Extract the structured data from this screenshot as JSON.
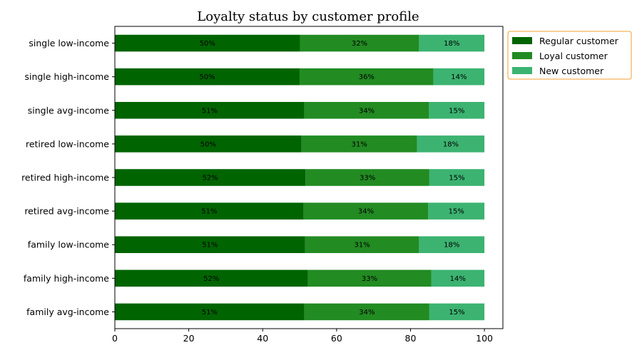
{
  "chart_data": {
    "type": "bar",
    "orientation": "horizontal",
    "stacked": true,
    "title": "Loyalty status by customer profile",
    "xlabel": "",
    "ylabel": "",
    "xlim": [
      0,
      105
    ],
    "x_ticks": [
      "0",
      "20",
      "40",
      "60",
      "80",
      "100"
    ],
    "grid": false,
    "legend_position": "outside-top-right",
    "categories": [
      "single low-income",
      "single high-income",
      "single avg-income",
      "retired low-income",
      "retired high-income",
      "retired avg-income",
      "family low-income",
      "family high-income",
      "family avg-income"
    ],
    "series": [
      {
        "name": "Regular customer",
        "color": "#006400",
        "values": [
          50.1,
          50.0,
          51.3,
          50.5,
          51.6,
          51.1,
          51.5,
          52.2,
          51.3
        ],
        "labels": [
          "50%",
          "50%",
          "51%",
          "50%",
          "52%",
          "51%",
          "51%",
          "52%",
          "51%"
        ]
      },
      {
        "name": "Loyal customer",
        "color": "#228b22",
        "values": [
          32.2,
          36.2,
          33.7,
          31.3,
          33.5,
          33.7,
          30.8,
          33.4,
          33.8
        ],
        "labels": [
          "32%",
          "36%",
          "34%",
          "31%",
          "33%",
          "34%",
          "31%",
          "33%",
          "34%"
        ]
      },
      {
        "name": "New customer",
        "color": "#3cb371",
        "values": [
          17.7,
          13.8,
          15.0,
          18.2,
          14.9,
          15.2,
          17.7,
          14.4,
          14.9
        ],
        "labels": [
          "18%",
          "14%",
          "15%",
          "18%",
          "15%",
          "15%",
          "18%",
          "14%",
          "15%"
        ]
      }
    ],
    "legend_border_color": "#f0a030"
  }
}
